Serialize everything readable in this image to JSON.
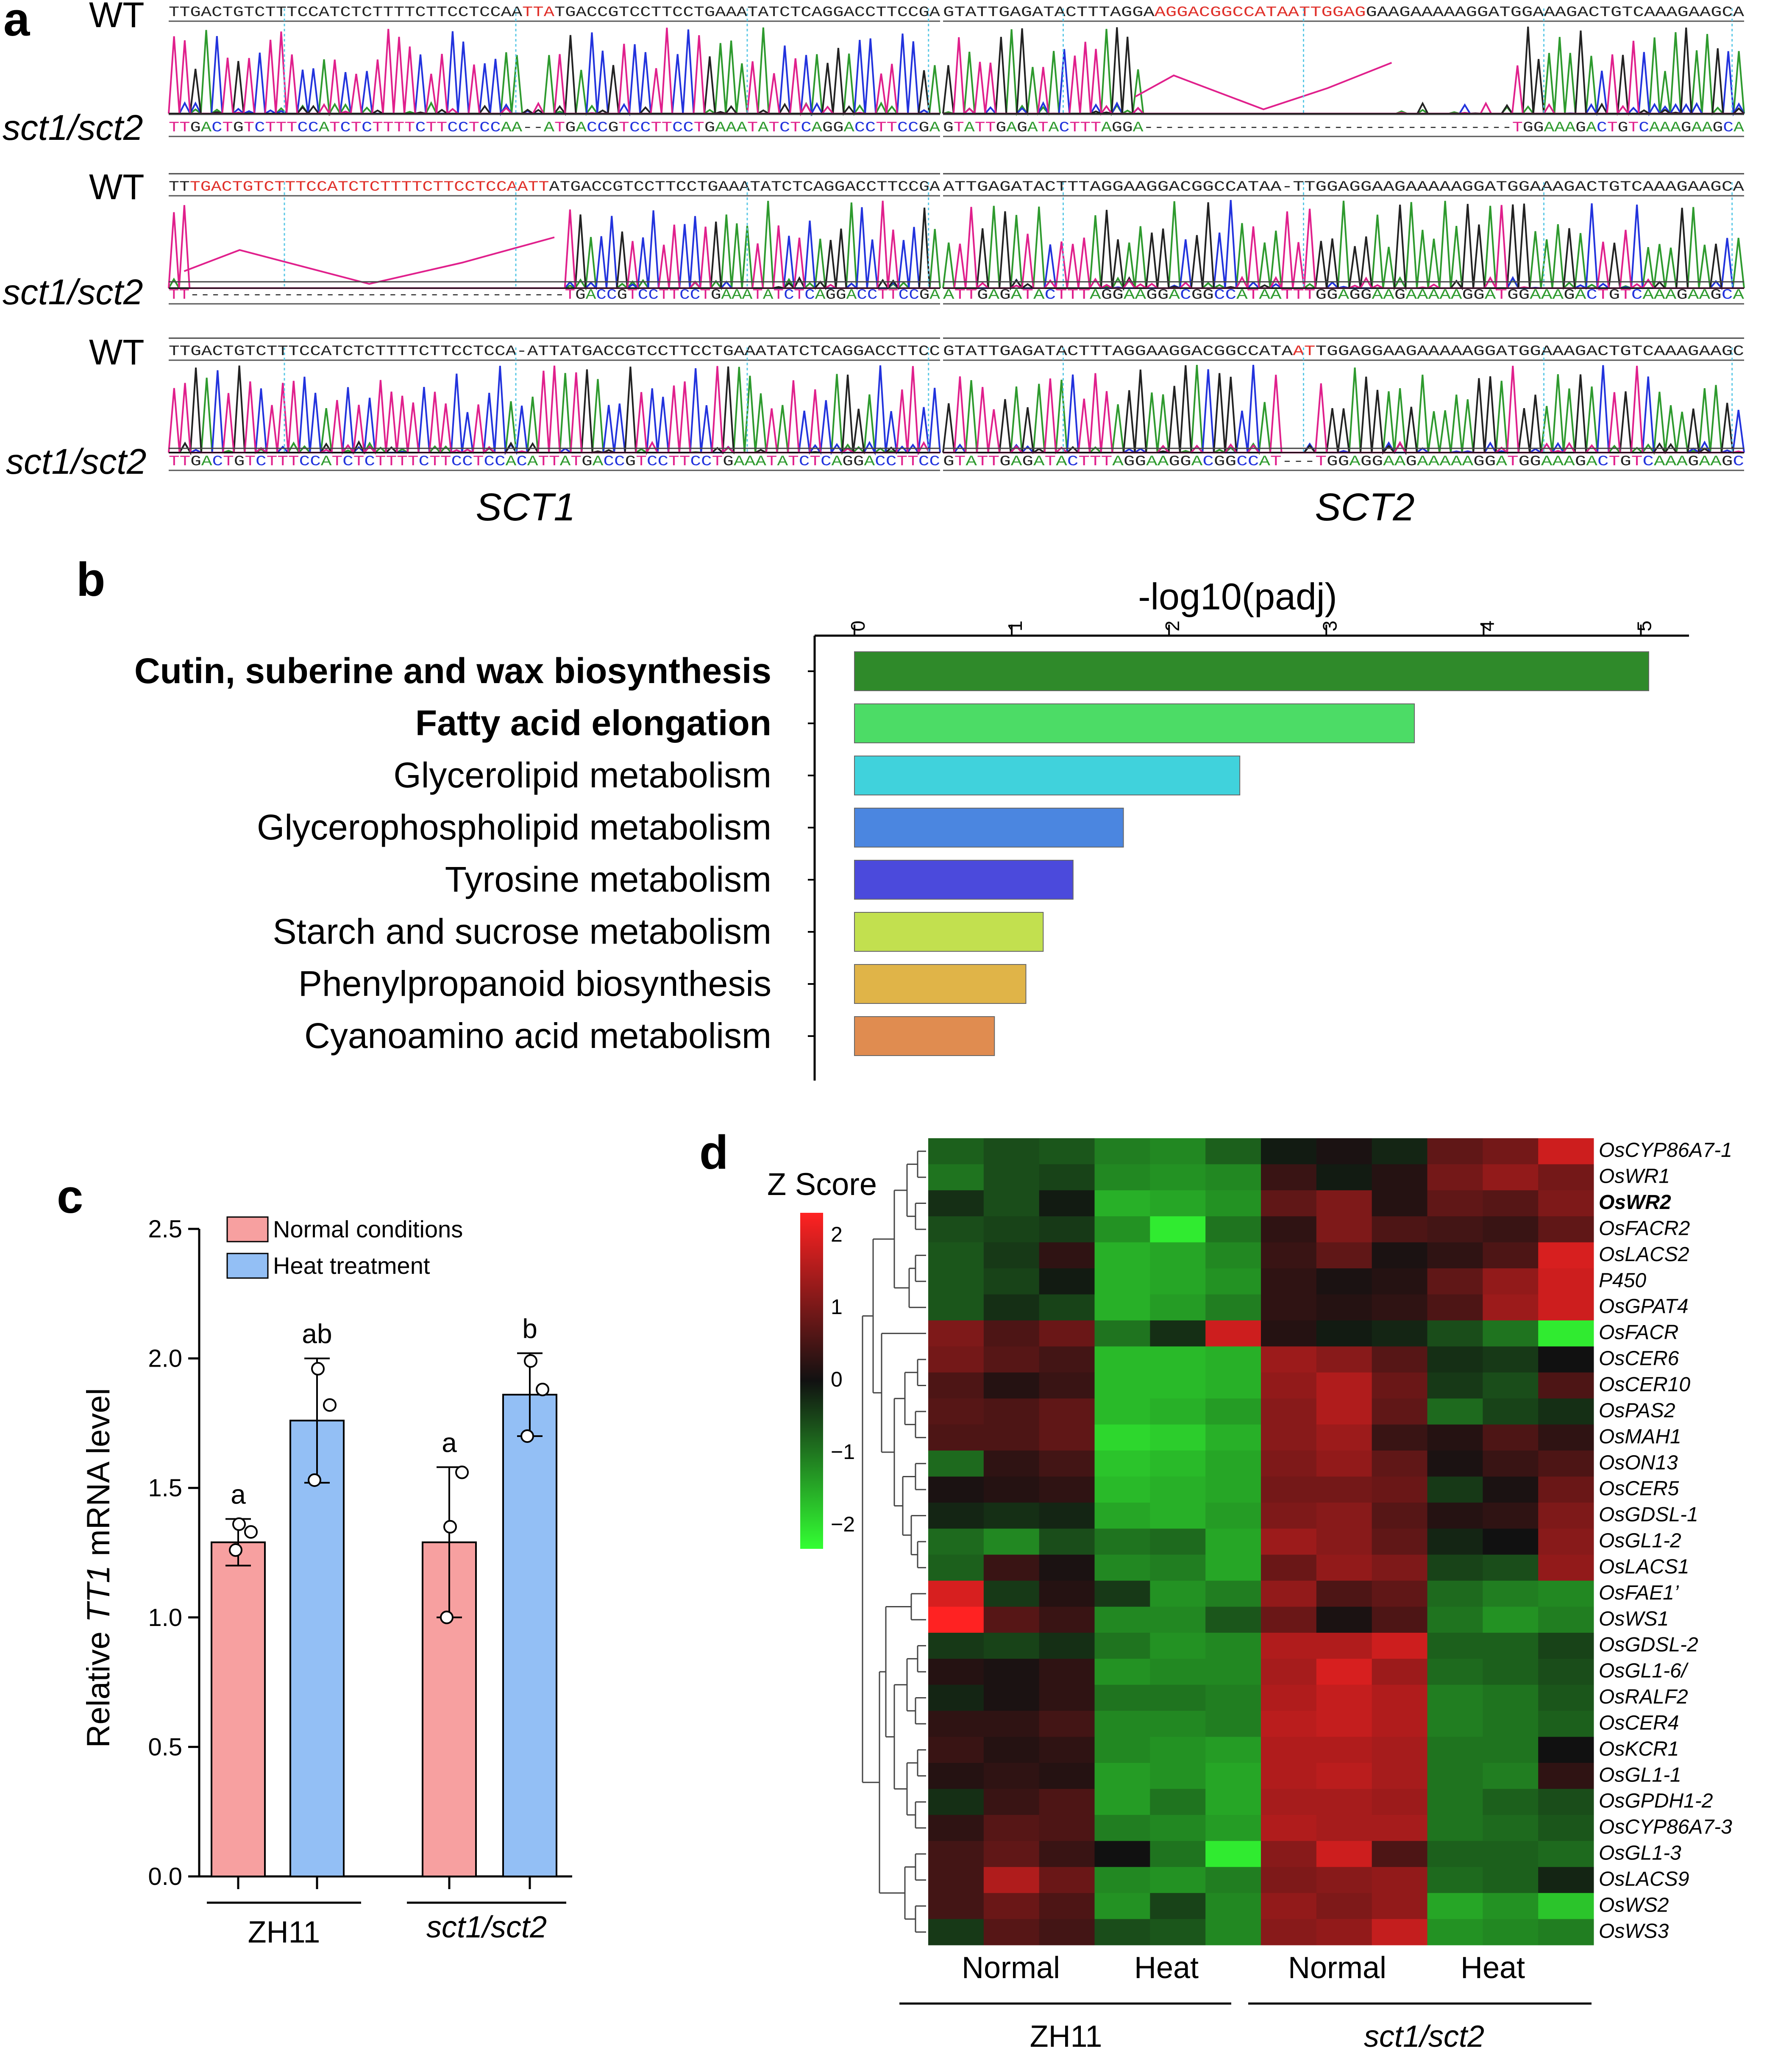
{
  "colors": {
    "seq_black": "#222222",
    "seq_red": "#e0302a",
    "base_A": "#2e9a2e",
    "base_C": "#2233dd",
    "base_G": "#222222",
    "base_T": "#e0208c",
    "normal_bar": "#f7a0a0",
    "heat_bar": "#93bff5",
    "heat_low": "#33ff33",
    "heat_mid": "#111111",
    "heat_high": "#ff2222"
  },
  "panel_a": {
    "label": "a",
    "row_labels": [
      "WT",
      "sct1/sct2",
      "WT",
      "sct1/sct2",
      "WT",
      "sct1/sct2"
    ],
    "gene_labels": [
      "SCT1",
      "SCT2"
    ],
    "blocks": [
      {
        "sct1_wt": "TTGACTGTCTTTCCATCTCTTTTCTTCCTCCAATTATGACCGTCCTTCCTGAAATATCTCAGGACCTTCCGA",
        "sct1_mut": "TTGACTGTCTTTCCATCTCTTTTCTTCCTCCAA--ATGACCGTCCTTCCTGAAATATCTCAGGACCTTCCGA",
        "sct2_wt": "GTATTGAGATACTTTAGGAAGGACGGCCATAATTGGAGGAAGAAAAAGGATGGAAAGACTGTCAAAGAAGCA",
        "sct2_mut": "GTATTGAGATACTTTAGGA-----------------------------------TGGAAAGACTGTCAAAGAAGCA"
      },
      {
        "sct1_wt": "TTTGACTGTCTTTCCATCTCTTTTCTTCCTCCAATTATGACCGTCCTTCCTGAAATATCTCAGGACCTTCCGA",
        "sct1_mut": "TT------------------------------------TGACCGTCCTTCCTGAAATATCTCAGGACCTTCCGA",
        "sct2_wt": "ATTGAGATACTTTAGGAAGGACGGCCATAA-TTGGAGGAAGAAAAAGGATGGAAAGACTGTCAAAGAAGCA",
        "sct2_mut": "ATTGAGATACTTTAGGAAGGACGGCCATAATTTGGAGGAAGAAAAAGGATGGAAAGACTGTCAAAGAAGCA"
      },
      {
        "sct1_wt": "TTGACTGTCTTTCCATCTCTTTTCTTCCTCCA-ATTATGACCGTCCTTCCTGAAATATCTCAGGACCTTCC",
        "sct1_mut": "TTGACTGTCTTTCCATCTCTTTTCTTCCTCCACATTATGACCGTCCTTCCTGAAATATCTCAGGACCTTCC",
        "sct2_wt": "GTATTGAGATACTTTAGGAAGGACGGCCATAATTGGAGGAAGAAAAAGGATGGAAAGACTGTCAAAGAAGC",
        "sct2_mut": "GTATTGAGATACTTTAGGAAGGACGGCCAT---TGGAGGAAGAAAAAGGATGGAAAGACTGTCAAAGAAGC"
      }
    ]
  },
  "chart_data": [
    {
      "id": "b",
      "type": "bar",
      "orientation": "horizontal",
      "panel_label": "b",
      "title": "-log10(padj)",
      "categories": [
        "Cutin, suberine and wax biosynthesis",
        "Fatty acid elongation",
        "Glycerolipid metabolism",
        "Glycerophospholipid metabolism",
        "Tyrosine metabolism",
        "Starch and sucrose metabolism",
        "Phenylpropanoid biosynthesis",
        "Cyanoamino acid metabolism"
      ],
      "bold_categories": [
        "Cutin, suberine and wax biosynthesis",
        "Fatty acid elongation"
      ],
      "values": [
        5.05,
        3.56,
        2.45,
        1.71,
        1.39,
        1.2,
        1.09,
        0.89
      ],
      "bar_colors": [
        "#2f8a2a",
        "#4cdc66",
        "#40d2dc",
        "#4b86e0",
        "#4b4adc",
        "#c2e04f",
        "#e0b448",
        "#e08c50"
      ],
      "xlim": [
        0,
        5.2
      ],
      "xticks": [
        "0",
        "1",
        "2",
        "3",
        "4",
        "5"
      ],
      "axis_position": "top"
    },
    {
      "id": "c",
      "type": "bar",
      "panel_label": "c",
      "ylabel_prefix": "Relative ",
      "ylabel_gene": "TT1",
      "ylabel_suffix": " mRNA level",
      "ylim": [
        0,
        2.5
      ],
      "yticks": [
        "0.0",
        "0.5",
        "1.0",
        "1.5",
        "2.0",
        "2.5"
      ],
      "groups": [
        "ZH11",
        "sct1/sct2"
      ],
      "series": [
        {
          "name": "Normal conditions",
          "values": [
            1.29,
            1.29
          ],
          "errors": [
            0.09,
            0.29
          ],
          "letters": [
            "a",
            "a"
          ],
          "points": [
            [
              1.26,
              1.36,
              1.33
            ],
            [
              1.0,
              1.35,
              1.56
            ]
          ]
        },
        {
          "name": "Heat treatment",
          "values": [
            1.76,
            1.86
          ],
          "errors": [
            0.24,
            0.16
          ],
          "letters": [
            "ab",
            "b"
          ],
          "points": [
            [
              1.53,
              1.96,
              1.82
            ],
            [
              1.7,
              1.99,
              1.88
            ]
          ]
        }
      ]
    },
    {
      "id": "d",
      "type": "heatmap",
      "panel_label": "d",
      "legend_title": "Z Score",
      "legend_ticks": [
        "2",
        "1",
        "0",
        "−1",
        "−2"
      ],
      "zlim": [
        -2.4,
        2.4
      ],
      "condition_labels": [
        "Normal",
        "Heat",
        "Normal",
        "Heat"
      ],
      "group_labels": [
        "ZH11",
        "sct1/sct2"
      ],
      "bold_rows": [
        "OsWR2"
      ],
      "rows": [
        "OsCYP86A7-1",
        "OsWR1",
        "OsWR2",
        "OsFACR2",
        "OsLACS2",
        "P450",
        "OsGPAT4",
        "OsFACR",
        "OsCER6",
        "OsCER10",
        "OsPAS2",
        "OsMAH1",
        "OsON13",
        "OsCER5",
        "OsGDSL-1",
        "OsGL1-2",
        "OsLACS1",
        "OsFAE1’",
        "OsWS1",
        "OsGDSL-2",
        "OsGL1-6/",
        "OsRALF2",
        "OsCER4",
        "OsKCR1",
        "OsGL1-1",
        "OsGPDH1-2",
        "OsCYP86A7-3",
        "OsGL1-3",
        "OsLACS9",
        "OsWS2",
        "OsWS3"
      ],
      "values": [
        [
          -0.8,
          -0.6,
          -0.7,
          -1.1,
          -1.2,
          -0.8,
          -0.1,
          0.1,
          -0.2,
          0.8,
          1.0,
          1.9
        ],
        [
          -1.0,
          -0.6,
          -0.5,
          -1.2,
          -1.3,
          -1.2,
          0.4,
          -0.1,
          0.2,
          1.0,
          1.3,
          1.0
        ],
        [
          -0.3,
          -0.6,
          -0.1,
          -1.6,
          -1.5,
          -1.3,
          0.8,
          1.1,
          0.2,
          0.8,
          0.7,
          1.1
        ],
        [
          -0.6,
          -0.5,
          -0.4,
          -1.3,
          -2.2,
          -1.0,
          0.3,
          1.1,
          0.6,
          0.5,
          0.4,
          0.8
        ],
        [
          -0.7,
          -0.4,
          0.3,
          -1.6,
          -1.5,
          -1.2,
          0.4,
          0.8,
          0.1,
          0.3,
          0.6,
          2.0
        ],
        [
          -0.7,
          -0.5,
          -0.1,
          -1.6,
          -1.5,
          -1.3,
          0.3,
          0.1,
          0.2,
          0.8,
          1.3,
          1.9
        ],
        [
          -0.7,
          -0.3,
          -0.5,
          -1.6,
          -1.4,
          -1.1,
          0.3,
          0.2,
          0.3,
          0.6,
          1.4,
          1.9
        ],
        [
          1.1,
          0.6,
          0.9,
          -1.0,
          -0.3,
          1.9,
          0.2,
          -0.1,
          -0.2,
          -0.6,
          -1.0,
          -2.2
        ],
        [
          1.0,
          0.7,
          0.5,
          -1.7,
          -1.7,
          -1.6,
          1.4,
          1.2,
          0.7,
          -0.3,
          -0.4,
          0.0
        ],
        [
          0.6,
          0.2,
          0.4,
          -1.7,
          -1.7,
          -1.6,
          1.3,
          1.6,
          0.9,
          -0.4,
          -0.6,
          0.6
        ],
        [
          0.7,
          0.6,
          0.8,
          -1.7,
          -1.6,
          -1.4,
          1.2,
          1.6,
          0.8,
          -0.9,
          -0.5,
          -0.3
        ],
        [
          0.6,
          0.6,
          0.8,
          -2.0,
          -1.9,
          -1.6,
          1.2,
          1.4,
          0.4,
          0.2,
          0.6,
          0.3
        ],
        [
          -0.9,
          0.3,
          0.5,
          -1.8,
          -1.7,
          -1.5,
          1.1,
          1.3,
          0.8,
          0.1,
          0.4,
          0.6
        ],
        [
          0.1,
          0.2,
          0.3,
          -1.7,
          -1.6,
          -1.5,
          1.0,
          1.0,
          0.9,
          -0.4,
          0.1,
          0.9
        ],
        [
          -0.2,
          -0.3,
          -0.2,
          -1.5,
          -1.6,
          -1.4,
          1.1,
          1.2,
          0.7,
          0.2,
          0.3,
          1.1
        ],
        [
          -0.9,
          -1.2,
          -0.6,
          -1.0,
          -0.9,
          -1.5,
          1.4,
          1.2,
          0.8,
          -0.2,
          0.0,
          1.2
        ],
        [
          -0.8,
          0.4,
          0.1,
          -1.2,
          -1.1,
          -1.5,
          0.9,
          1.3,
          1.1,
          -0.5,
          -0.6,
          1.3
        ],
        [
          2.0,
          -0.4,
          0.2,
          -0.4,
          -1.3,
          -1.1,
          1.3,
          0.6,
          0.8,
          -0.9,
          -1.1,
          -1.2
        ],
        [
          2.4,
          0.7,
          0.4,
          -1.2,
          -1.2,
          -0.7,
          0.9,
          0.1,
          0.6,
          -1.0,
          -1.3,
          -1.1
        ],
        [
          -0.4,
          -0.5,
          -0.3,
          -1.0,
          -1.3,
          -1.2,
          1.6,
          1.6,
          1.9,
          -0.8,
          -0.8,
          -0.5
        ],
        [
          0.2,
          0.1,
          0.3,
          -1.3,
          -1.2,
          -1.2,
          1.5,
          2.0,
          1.4,
          -0.9,
          -0.8,
          -0.6
        ],
        [
          -0.2,
          0.1,
          0.3,
          -1.0,
          -1.0,
          -1.1,
          1.6,
          1.8,
          1.6,
          -1.1,
          -1.0,
          -0.7
        ],
        [
          0.3,
          0.3,
          0.5,
          -1.2,
          -1.2,
          -1.1,
          1.7,
          1.8,
          1.6,
          -1.1,
          -1.0,
          -0.8
        ],
        [
          0.4,
          0.2,
          0.3,
          -1.2,
          -1.3,
          -1.4,
          1.6,
          1.6,
          1.5,
          -1.0,
          -1.0,
          0.0
        ],
        [
          0.2,
          0.3,
          0.2,
          -1.4,
          -1.3,
          -1.5,
          1.6,
          1.7,
          1.5,
          -1.0,
          -1.1,
          0.3
        ],
        [
          -0.3,
          0.4,
          0.6,
          -1.4,
          -1.0,
          -1.5,
          1.5,
          1.5,
          1.4,
          -1.0,
          -0.8,
          -0.6
        ],
        [
          0.3,
          0.7,
          0.6,
          -1.1,
          -1.2,
          -1.4,
          1.6,
          1.5,
          1.5,
          -1.0,
          -0.9,
          -0.7
        ],
        [
          0.5,
          0.8,
          0.4,
          0.0,
          -1.0,
          -2.2,
          1.2,
          1.9,
          0.6,
          -0.8,
          -0.8,
          -0.9
        ],
        [
          0.5,
          1.6,
          0.9,
          -1.2,
          -1.3,
          -1.1,
          1.1,
          1.2,
          1.3,
          -0.9,
          -0.8,
          -0.2
        ],
        [
          0.5,
          0.9,
          0.6,
          -1.3,
          -0.5,
          -1.2,
          1.3,
          1.1,
          1.3,
          -1.5,
          -1.3,
          -1.8
        ],
        [
          -0.4,
          0.7,
          0.5,
          -0.6,
          -0.7,
          -1.2,
          1.2,
          1.3,
          1.8,
          -1.3,
          -1.2,
          -1.1
        ]
      ]
    }
  ]
}
